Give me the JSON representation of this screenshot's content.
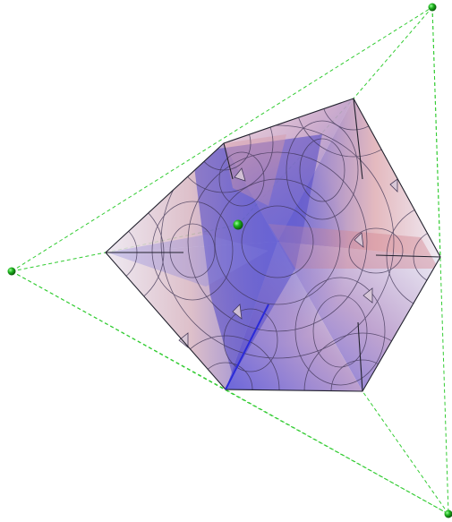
{
  "scene": {
    "background": "#ffffff",
    "guide_color": "#33cc33",
    "vertex_marker_color": "#1fb51f",
    "edge_color": "#2a2a3a",
    "palette": {
      "blue": "#5a5ad8",
      "deep_blue": "#3b34b8",
      "red": "#d89090",
      "light": "#e8e4f0"
    }
  }
}
